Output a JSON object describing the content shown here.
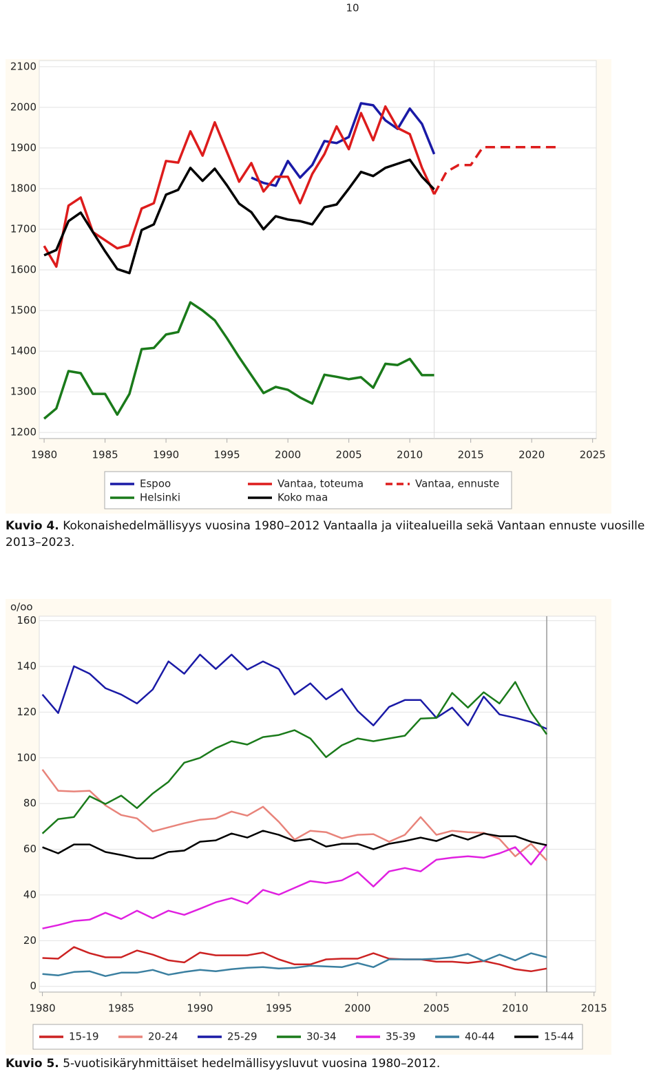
{
  "page_number": "10",
  "captions": [
    {
      "label": "Kuvio 4.",
      "text": "Kokonaishedelmällisyys vuosina 1980–2012 Vantaalla ja viitealueilla sekä Vantaan ennuste vuosille 2013–2023."
    },
    {
      "label": "Kuvio 5.",
      "text": "5-vuotisikäryhmittäiset hedelmällisyysluvut vuosina 1980–2012."
    }
  ],
  "chart_data": [
    {
      "type": "line",
      "x": [
        1980,
        1981,
        1982,
        1983,
        1984,
        1985,
        1986,
        1987,
        1988,
        1989,
        1990,
        1991,
        1992,
        1993,
        1994,
        1995,
        1996,
        1997,
        1998,
        1999,
        2000,
        2001,
        2002,
        2003,
        2004,
        2005,
        2006,
        2007,
        2008,
        2009,
        2010,
        2011,
        2012,
        2013,
        2014,
        2015,
        2016,
        2017,
        2018,
        2019,
        2020,
        2021,
        2022
      ],
      "xlim": [
        1979.6,
        2025.3
      ],
      "xticks": [
        1980,
        1985,
        1990,
        1995,
        2000,
        2005,
        2010,
        2015,
        2020,
        2025
      ],
      "ylim": [
        1185,
        2115
      ],
      "yticks": [
        1200,
        1300,
        1400,
        1500,
        1600,
        1700,
        1800,
        1900,
        2000,
        2100
      ],
      "grid": true,
      "vline": 2012,
      "series": [
        {
          "name": "Espoo",
          "color": "#1a1aa6",
          "values": [
            null,
            null,
            null,
            null,
            null,
            null,
            null,
            null,
            null,
            null,
            null,
            null,
            null,
            null,
            null,
            null,
            null,
            1827,
            1814,
            1807,
            1868,
            1827,
            1858,
            1917,
            1912,
            1927,
            2010,
            2005,
            1968,
            1947,
            1997,
            1959,
            1885,
            null,
            null,
            null,
            null,
            null,
            null,
            null,
            null,
            null,
            null
          ]
        },
        {
          "name": "Vantaa, toteuma",
          "color": "#dd1c1c",
          "values": [
            1659,
            1608,
            1758,
            1778,
            1693,
            1673,
            1653,
            1661,
            1751,
            1764,
            1868,
            1864,
            1941,
            1881,
            1963,
            1890,
            1817,
            1863,
            1793,
            1829,
            1829,
            1764,
            1836,
            1885,
            1953,
            1897,
            1986,
            1919,
            2002,
            1949,
            1934,
            1851,
            1786,
            null,
            null,
            null,
            null,
            null,
            null,
            null,
            null,
            null,
            null
          ]
        },
        {
          "name": "Vantaa, ennuste",
          "color": "#dd1c1c",
          "dash": true,
          "values": [
            null,
            null,
            null,
            null,
            null,
            null,
            null,
            null,
            null,
            null,
            null,
            null,
            null,
            null,
            null,
            null,
            null,
            null,
            null,
            null,
            null,
            null,
            null,
            null,
            null,
            null,
            null,
            null,
            null,
            null,
            null,
            null,
            1786,
            1841,
            1858,
            1858,
            1902,
            1902,
            1902,
            1902,
            1902,
            1902,
            1902
          ]
        },
        {
          "name": "Helsinki",
          "color": "#1a7a1a",
          "values": [
            1234,
            1259,
            1351,
            1346,
            1295,
            1295,
            1244,
            1295,
            1405,
            1408,
            1441,
            1447,
            1520,
            1500,
            1476,
            1432,
            1385,
            1341,
            1297,
            1312,
            1305,
            1286,
            1271,
            1342,
            1337,
            1331,
            1336,
            1310,
            1369,
            1366,
            1381,
            1341,
            1341,
            null,
            null,
            null,
            null,
            null,
            null,
            null,
            null,
            null,
            null
          ]
        },
        {
          "name": "Koko maa",
          "color": "#000000",
          "values": [
            1636,
            1649,
            1720,
            1741,
            1693,
            1646,
            1602,
            1592,
            1698,
            1712,
            1785,
            1797,
            1851,
            1819,
            1849,
            1808,
            1763,
            1742,
            1700,
            1732,
            1724,
            1720,
            1712,
            1754,
            1761,
            1800,
            1841,
            1831,
            1851,
            1861,
            1871,
            1829,
            1798,
            null,
            null,
            null,
            null,
            null,
            null,
            null,
            null,
            null,
            null
          ]
        }
      ]
    },
    {
      "type": "line",
      "ylabel": "o/oo",
      "x": [
        1980,
        1981,
        1982,
        1983,
        1984,
        1985,
        1986,
        1987,
        1988,
        1989,
        1990,
        1991,
        1992,
        1993,
        1994,
        1995,
        1996,
        1997,
        1998,
        1999,
        2000,
        2001,
        2002,
        2003,
        2004,
        2005,
        2006,
        2007,
        2008,
        2009,
        2010,
        2011,
        2012
      ],
      "xlim": [
        1979.8,
        2015.1
      ],
      "xticks": [
        1980,
        1985,
        1990,
        1995,
        2000,
        2005,
        2010,
        2015
      ],
      "ylim": [
        -2.5,
        162
      ],
      "yticks": [
        0,
        20,
        40,
        60,
        80,
        100,
        120,
        140,
        160
      ],
      "grid": true,
      "vline": 2012,
      "series": [
        {
          "name": "15-19",
          "color": "#cc2222",
          "values": [
            12.4,
            12.1,
            17.2,
            14.5,
            12.7,
            12.7,
            15.7,
            13.9,
            11.4,
            10.5,
            14.8,
            13.6,
            13.6,
            13.6,
            14.8,
            11.8,
            9.6,
            9.6,
            11.8,
            12.1,
            12.1,
            14.5,
            12.1,
            11.8,
            11.8,
            10.8,
            10.8,
            10.2,
            11.1,
            9.6,
            7.5,
            6.6,
            7.8
          ]
        },
        {
          "name": "20-24",
          "color": "#e8837a",
          "values": [
            94.9,
            85.6,
            85.3,
            85.6,
            79.2,
            75.0,
            73.5,
            67.8,
            69.6,
            71.4,
            72.9,
            73.5,
            76.5,
            74.7,
            78.6,
            72.0,
            64.2,
            68.1,
            67.5,
            64.8,
            66.3,
            66.6,
            63.3,
            66.3,
            74.1,
            66.3,
            68.1,
            67.5,
            67.2,
            64.5,
            56.9,
            62.4,
            55.1
          ]
        },
        {
          "name": "25-29",
          "color": "#1a1aa6",
          "values": [
            127.7,
            119.6,
            140.1,
            136.8,
            130.5,
            127.7,
            123.8,
            129.9,
            142.2,
            136.8,
            145.2,
            138.9,
            145.2,
            138.6,
            142.2,
            138.9,
            127.7,
            132.6,
            125.6,
            130.2,
            120.5,
            114.2,
            122.3,
            125.3,
            125.3,
            117.5,
            122.0,
            114.2,
            126.8,
            119.0,
            117.5,
            115.7,
            112.7
          ]
        },
        {
          "name": "30-34",
          "color": "#1a7a1a",
          "values": [
            66.9,
            73.2,
            74.1,
            83.2,
            79.8,
            83.5,
            78.0,
            84.4,
            89.5,
            97.9,
            100.0,
            104.2,
            107.3,
            105.8,
            109.1,
            110.0,
            112.1,
            108.5,
            100.3,
            105.5,
            108.5,
            107.3,
            108.5,
            109.7,
            117.2,
            117.5,
            128.4,
            122.0,
            128.7,
            123.8,
            133.2,
            119.9,
            110.3
          ]
        },
        {
          "name": "35-39",
          "color": "#e020e0",
          "values": [
            25.3,
            26.8,
            28.6,
            29.2,
            32.2,
            29.5,
            33.1,
            29.8,
            33.1,
            31.3,
            34.0,
            36.8,
            38.6,
            36.2,
            42.2,
            40.1,
            43.1,
            46.1,
            45.2,
            46.4,
            50.0,
            43.7,
            50.3,
            51.8,
            50.3,
            55.4,
            56.3,
            56.9,
            56.3,
            58.2,
            60.9,
            53.3,
            62.1
          ]
        },
        {
          "name": "40-44",
          "color": "#3a7fa0",
          "values": [
            5.4,
            4.8,
            6.3,
            6.6,
            4.5,
            6.0,
            6.0,
            7.2,
            5.1,
            6.3,
            7.2,
            6.6,
            7.5,
            8.1,
            8.4,
            7.8,
            8.1,
            9.0,
            8.7,
            8.4,
            10.2,
            8.4,
            11.8,
            11.8,
            11.8,
            12.1,
            12.7,
            14.2,
            11.1,
            13.9,
            11.4,
            14.5,
            12.7
          ]
        },
        {
          "name": "15-44",
          "color": "#000000",
          "values": [
            60.9,
            58.2,
            62.1,
            62.1,
            58.8,
            57.5,
            56.0,
            56.0,
            58.8,
            59.4,
            63.3,
            63.9,
            66.9,
            65.1,
            68.1,
            66.3,
            63.6,
            64.5,
            61.2,
            62.4,
            62.4,
            60.0,
            62.4,
            63.6,
            65.1,
            63.6,
            66.3,
            64.2,
            66.9,
            65.7,
            65.7,
            63.3,
            61.8
          ]
        }
      ]
    }
  ]
}
